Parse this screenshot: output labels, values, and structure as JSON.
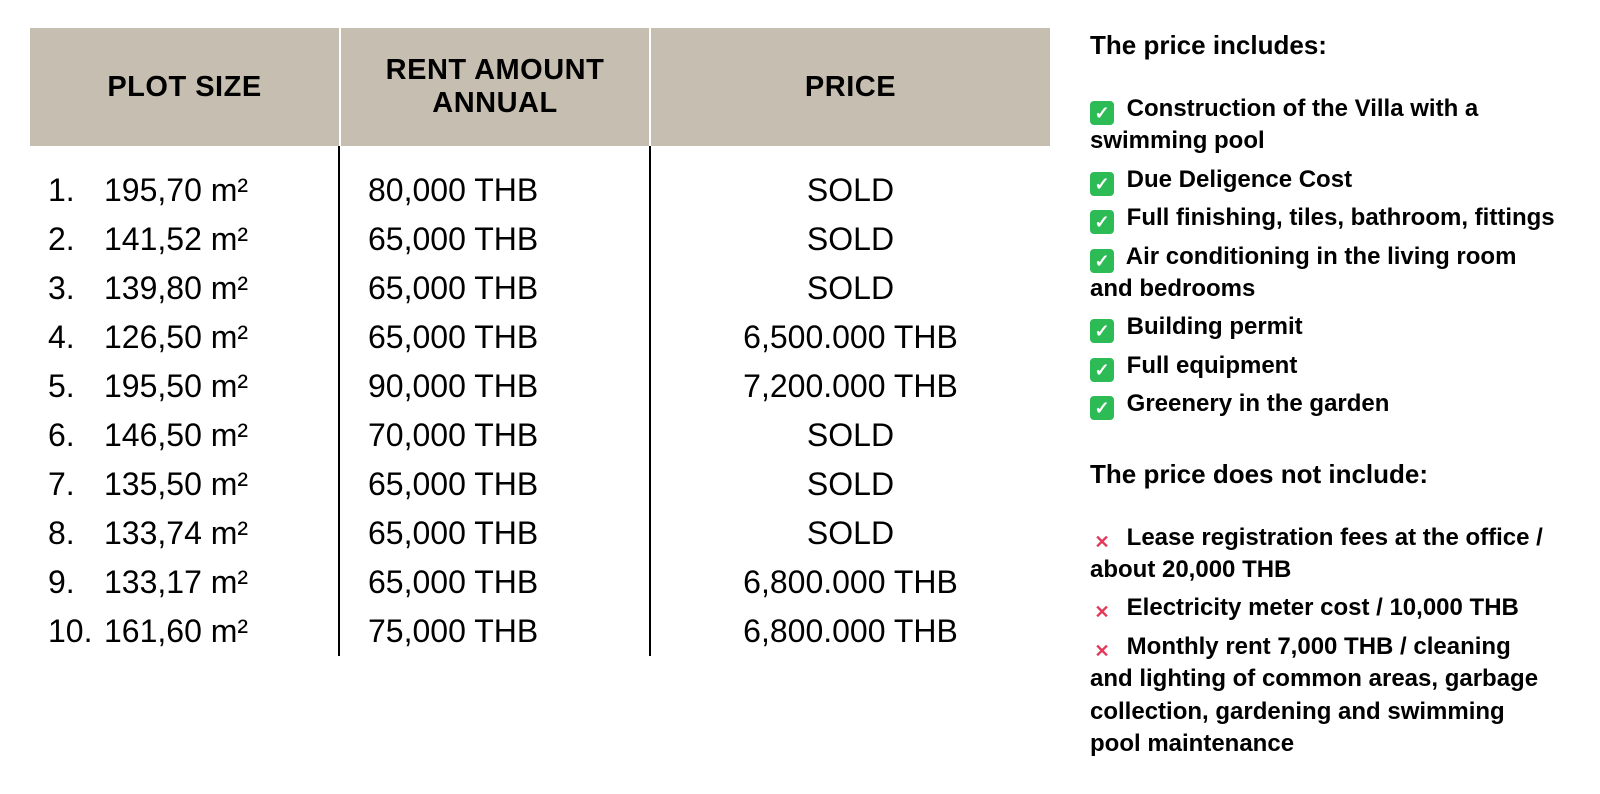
{
  "table": {
    "headers": {
      "size": "PLOT SIZE",
      "rent": "RENT AMOUNT ANNUAL",
      "price": "PRICE"
    },
    "header_bg": "#c6beb0",
    "border_color": "#000000",
    "rows": [
      {
        "n": "1.",
        "size": "195,70 m²",
        "rent": "80,000 THB",
        "price": "SOLD"
      },
      {
        "n": "2.",
        "size": "141,52 m²",
        "rent": "65,000 THB",
        "price": "SOLD"
      },
      {
        "n": "3.",
        "size": "139,80 m²",
        "rent": "65,000 THB",
        "price": "SOLD"
      },
      {
        "n": "4.",
        "size": "126,50 m²",
        "rent": "65,000 THB",
        "price": "6,500.000 THB"
      },
      {
        "n": "5.",
        "size": "195,50 m²",
        "rent": "90,000 THB",
        "price": "7,200.000 THB"
      },
      {
        "n": "6.",
        "size": "146,50 m²",
        "rent": "70,000 THB",
        "price": "SOLD"
      },
      {
        "n": "7.",
        "size": "135,50 m²",
        "rent": "65,000 THB",
        "price": "SOLD"
      },
      {
        "n": "8.",
        "size": "133,74 m²",
        "rent": "65,000 THB",
        "price": "SOLD"
      },
      {
        "n": "9.",
        "size": "133,17 m²",
        "rent": "65,000 THB",
        "price": "6,800.000 THB"
      },
      {
        "n": "10.",
        "size": "161,60 m²",
        "rent": "75,000 THB",
        "price": "6,800.000 THB"
      }
    ]
  },
  "side": {
    "includes_heading": "The price includes:",
    "excludes_heading": "The price does not include:",
    "check_color": "#2dbb55",
    "cross_color": "#e33a5a",
    "includes": [
      "Construction of the Villa with a swimming pool",
      "Due Deligence Cost",
      "Full finishing, tiles, bathroom, fittings",
      "Air conditioning in the living room and bedrooms",
      "Building permit",
      "Full equipment",
      "Greenery in the garden"
    ],
    "excludes": [
      "Lease registration fees at the office / about 20,000 THB",
      "Electricity meter cost / 10,000 THB",
      "Monthly rent 7,000 THB / cleaning and lighting of common areas, garbage collection, gardening and swimming pool maintenance"
    ]
  }
}
